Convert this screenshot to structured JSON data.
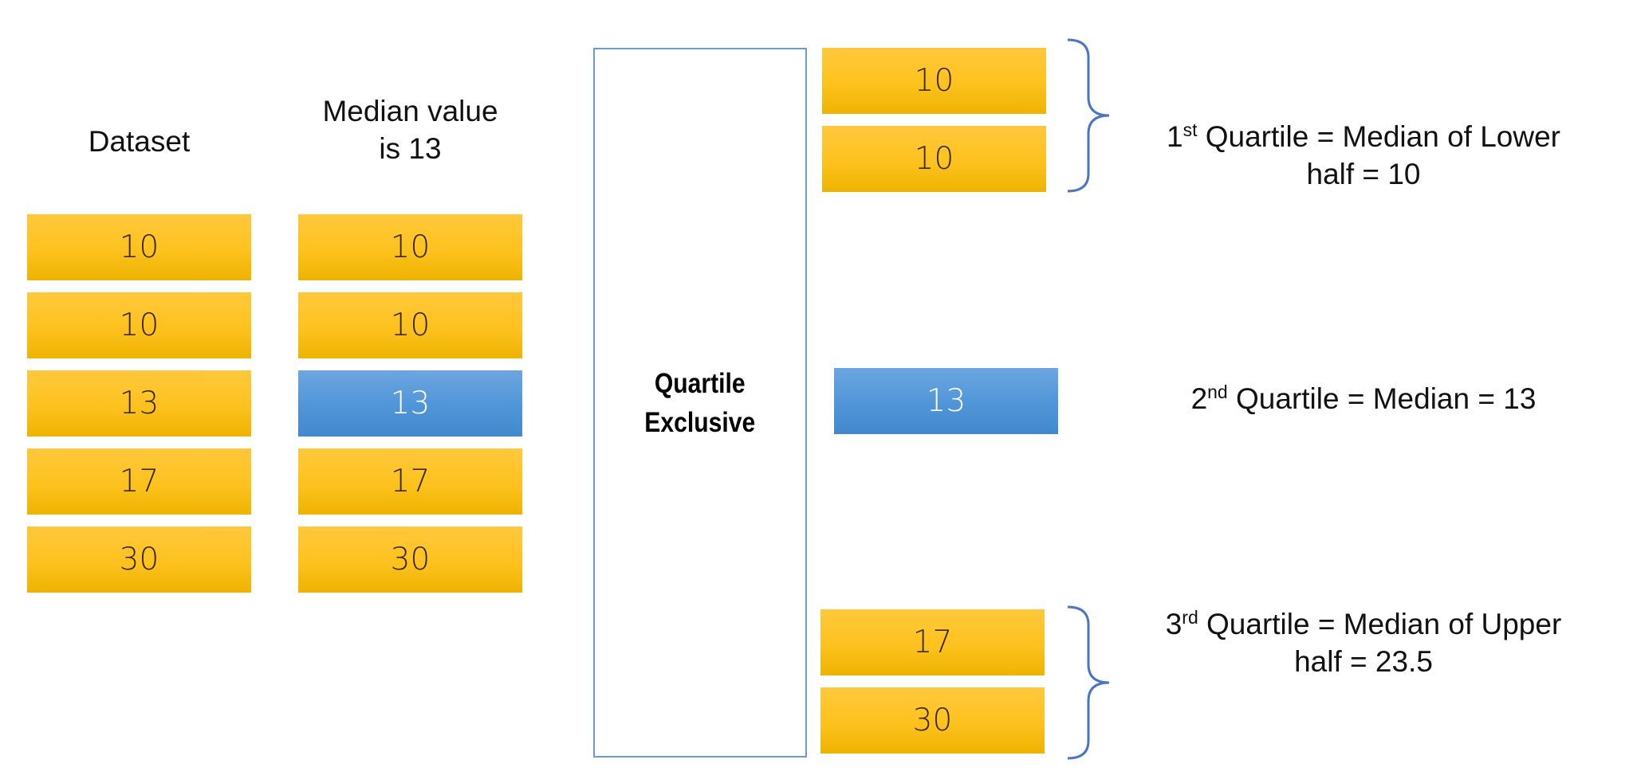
{
  "headings": {
    "dataset": "Dataset",
    "median_line1": "Median value",
    "median_line2": "is 13"
  },
  "dataset_column": [
    "10",
    "10",
    "13",
    "17",
    "30"
  ],
  "median_column": [
    "10",
    "10",
    "13",
    "17",
    "30"
  ],
  "median_highlight_index": 2,
  "quartile_box": {
    "line1": "Quartile",
    "line2": "Exclusive"
  },
  "lower_half": [
    "10",
    "10"
  ],
  "median_value": "13",
  "upper_half": [
    "17",
    "30"
  ],
  "notes": {
    "q1": {
      "ordinal_num": "1",
      "ordinal_suffix": "st",
      "line1_rest": " Quartile = Median of Lower",
      "line2": "half = 10"
    },
    "q2": {
      "ordinal_num": "2",
      "ordinal_suffix": "nd",
      "line1_rest": " Quartile = Median = 13"
    },
    "q3": {
      "ordinal_num": "3",
      "ordinal_suffix": "rd",
      "line1_rest": " Quartile = Median of Upper",
      "line2": "half = 23.5"
    }
  },
  "colors": {
    "cell_yellow": "#fdc21e",
    "cell_blue": "#5095d8",
    "box_border": "#6b9bd6",
    "brace": "#4a74c4"
  }
}
